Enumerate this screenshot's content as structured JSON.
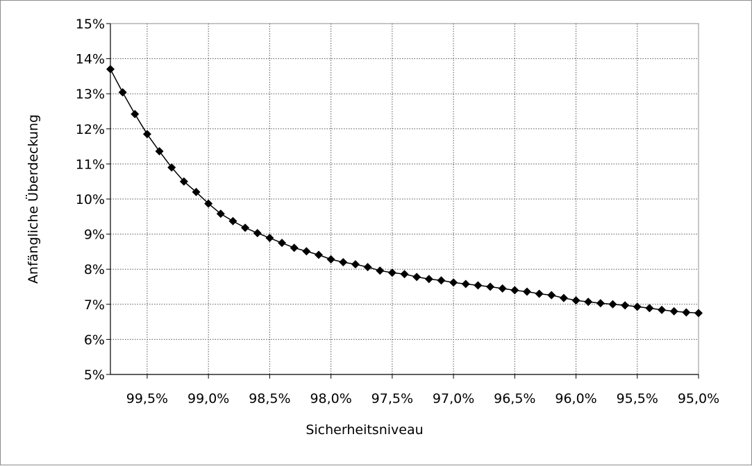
{
  "chart_data": {
    "type": "line",
    "title": "",
    "xlabel": "Sicherheitsniveau",
    "ylabel": "Anfängliche Überdeckung",
    "xlim": [
      99.8,
      95.0
    ],
    "x_reversed": true,
    "ylim": [
      5,
      15
    ],
    "grid": true,
    "grid_style": "dotted",
    "legend": "none",
    "marker": "diamond",
    "line_color": "#000000",
    "marker_color": "#000000",
    "x_tick_labels": [
      {
        "value": 99.5,
        "label": "99,5%"
      },
      {
        "value": 99.0,
        "label": "99,0%"
      },
      {
        "value": 98.5,
        "label": "98,5%"
      },
      {
        "value": 98.0,
        "label": "98,0%"
      },
      {
        "value": 97.5,
        "label": "97,5%"
      },
      {
        "value": 97.0,
        "label": "97,0%"
      },
      {
        "value": 96.5,
        "label": "96,5%"
      },
      {
        "value": 96.0,
        "label": "96,0%"
      },
      {
        "value": 95.5,
        "label": "95,5%"
      },
      {
        "value": 95.0,
        "label": "95,0%"
      }
    ],
    "y_tick_labels": [
      {
        "value": 5,
        "label": "5%"
      },
      {
        "value": 6,
        "label": "6%"
      },
      {
        "value": 7,
        "label": "7%"
      },
      {
        "value": 8,
        "label": "8%"
      },
      {
        "value": 9,
        "label": "9%"
      },
      {
        "value": 10,
        "label": "10%"
      },
      {
        "value": 11,
        "label": "11%"
      },
      {
        "value": 12,
        "label": "12%"
      },
      {
        "value": 13,
        "label": "13%"
      },
      {
        "value": 14,
        "label": "14%"
      },
      {
        "value": 15,
        "label": "15%"
      }
    ],
    "series": [
      {
        "x": [
          99.8,
          99.7,
          99.6,
          99.5,
          99.4,
          99.3,
          99.2,
          99.1,
          99.0,
          98.9,
          98.8,
          98.7,
          98.6,
          98.5,
          98.4,
          98.3,
          98.2,
          98.1,
          98.0,
          97.9,
          97.8,
          97.7,
          97.6,
          97.5,
          97.4,
          97.3,
          97.2,
          97.1,
          97.0,
          96.9,
          96.8,
          96.7,
          96.6,
          96.5,
          96.4,
          96.3,
          96.2,
          96.1,
          96.0,
          95.9,
          95.8,
          95.7,
          95.6,
          95.5,
          95.4,
          95.3,
          95.2,
          95.1,
          95.0
        ],
        "y": [
          13.7,
          13.04,
          12.42,
          11.85,
          11.36,
          10.9,
          10.5,
          10.2,
          9.87,
          9.58,
          9.37,
          9.18,
          9.03,
          8.89,
          8.75,
          8.61,
          8.51,
          8.41,
          8.28,
          8.2,
          8.14,
          8.06,
          7.96,
          7.9,
          7.86,
          7.78,
          7.72,
          7.68,
          7.62,
          7.58,
          7.54,
          7.5,
          7.45,
          7.4,
          7.36,
          7.3,
          7.26,
          7.18,
          7.11,
          7.07,
          7.03,
          7.0,
          6.97,
          6.93,
          6.89,
          6.84,
          6.8,
          6.77,
          6.75
        ]
      }
    ]
  }
}
